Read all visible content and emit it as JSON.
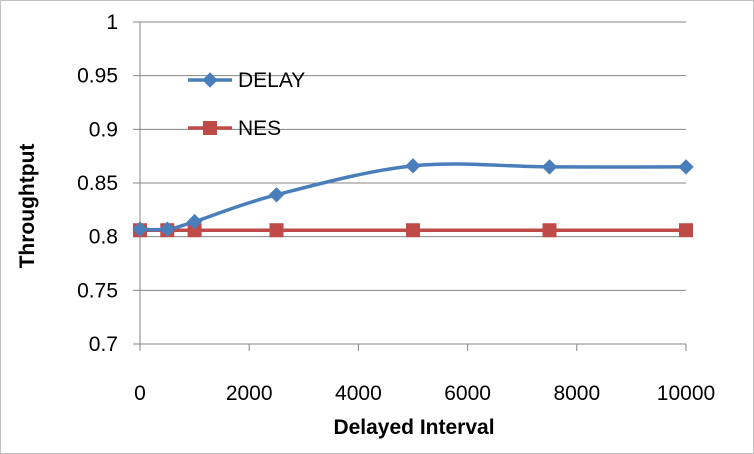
{
  "chart_data": {
    "type": "line",
    "title": "",
    "xlabel": "Delayed Interval",
    "ylabel": "Throughtput",
    "xlim": [
      0,
      10000
    ],
    "ylim": [
      0.7,
      1
    ],
    "x_ticks": [
      0,
      2000,
      4000,
      6000,
      8000,
      10000
    ],
    "x_tick_labels": [
      "0",
      "2000",
      "4000",
      "6000",
      "8000",
      "10000"
    ],
    "y_ticks": [
      0.7,
      0.75,
      0.8,
      0.85,
      0.9,
      0.95,
      1
    ],
    "y_tick_labels": [
      "0.7",
      "0.75",
      "0.8",
      "0.85",
      "0.9",
      "0.95",
      "1"
    ],
    "grid": "horizontal",
    "legend_position": "top-left",
    "series": [
      {
        "name": "DELAY",
        "color": "#4a7ebb",
        "marker": "diamond",
        "smooth": true,
        "x": [
          0,
          500,
          1000,
          2500,
          5000,
          7500,
          10000
        ],
        "y": [
          0.807,
          0.807,
          0.814,
          0.839,
          0.866,
          0.865,
          0.865
        ]
      },
      {
        "name": "NES",
        "color": "#be4b48",
        "marker": "square",
        "smooth": false,
        "x": [
          0,
          500,
          1000,
          2500,
          5000,
          7500,
          10000
        ],
        "y": [
          0.806,
          0.806,
          0.806,
          0.806,
          0.806,
          0.806,
          0.806
        ]
      }
    ]
  }
}
